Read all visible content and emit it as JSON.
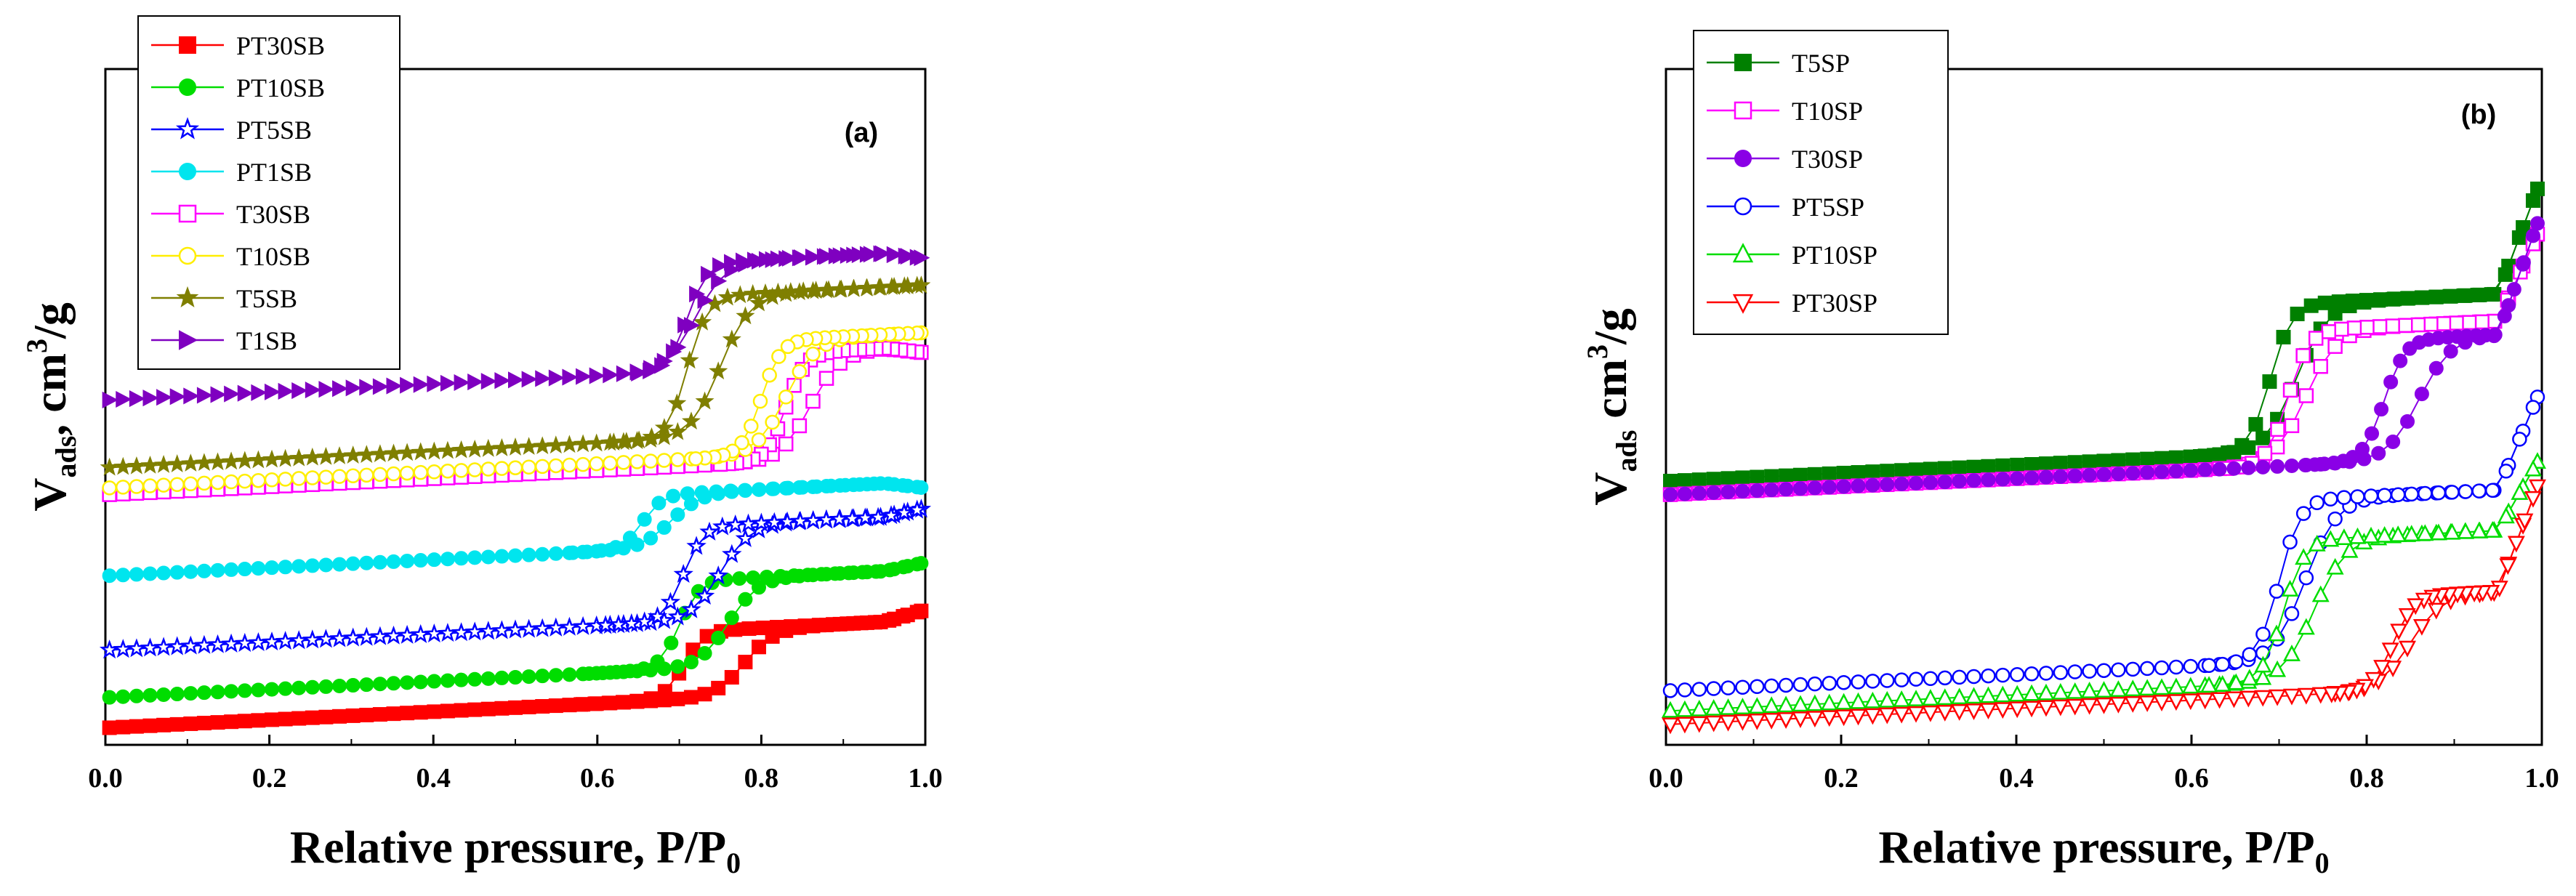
{
  "chart_data": [
    {
      "type": "line",
      "panel_label": "(a)",
      "xlabel": "Relative pressure, P/P",
      "xlabel_sub": "0",
      "ylabel": "V",
      "ylabel_sub": "ads",
      "ylabel_rest": ", cm",
      "ylabel_sup": "3",
      "ylabel_end": "/g",
      "xlim": [
        0,
        1
      ],
      "ylim": [
        0,
        100
      ],
      "xticks": [
        "0.0",
        "0.2",
        "0.4",
        "0.6",
        "0.8",
        "1.0"
      ],
      "yticks_shown": false,
      "legend_position": "top-left",
      "series": [
        {
          "name": "PT30SB",
          "color": "#ff0000",
          "marker": "square-filled",
          "base": 2.5,
          "step": 10,
          "pstep": 0.78,
          "high": 20,
          "hys": 0.15
        },
        {
          "name": "PT10SB",
          "color": "#00dd00",
          "marker": "circle-filled",
          "base": 7,
          "step": 13,
          "pstep": 0.76,
          "high": 27,
          "hys": 0.12
        },
        {
          "name": "PT5SB",
          "color": "#0000ff",
          "marker": "star-open",
          "base": 14,
          "step": 14,
          "pstep": 0.75,
          "high": 35,
          "hys": 0.09
        },
        {
          "name": "PT1SB",
          "color": "#00e5ee",
          "marker": "circle-filled",
          "base": 25,
          "step": 8,
          "pstep": 0.69,
          "high": 38,
          "hys": 0.07
        },
        {
          "name": "T30SB",
          "color": "#ff00ff",
          "marker": "square-open",
          "base": 37,
          "step": 16,
          "pstep": 0.86,
          "high": 58,
          "hys": 0.06
        },
        {
          "name": "T10SB",
          "color": "#ffee00",
          "marker": "circle-open",
          "base": 38,
          "step": 17,
          "pstep": 0.83,
          "high": 61,
          "hys": 0.06
        },
        {
          "name": "T5SB",
          "color": "#7f7f00",
          "marker": "star-filled",
          "base": 41,
          "step": 21,
          "pstep": 0.75,
          "high": 68,
          "hys": 0.08
        },
        {
          "name": "T1SB",
          "color": "#7f00c0",
          "marker": "triangle-right",
          "base": 51,
          "step": 16,
          "pstep": 0.72,
          "high": 72,
          "hys": 0.02
        }
      ]
    },
    {
      "type": "line",
      "panel_label": "(b)",
      "xlabel": "Relative pressure, P/P",
      "xlabel_sub": "0",
      "ylabel": "V",
      "ylabel_sub": "ads",
      "ylabel_rest": "  cm",
      "ylabel_sup": "3",
      "ylabel_end": "/g",
      "xlim": [
        0,
        1
      ],
      "ylim": [
        0,
        100
      ],
      "xticks": [
        "0.0",
        "0.2",
        "0.4",
        "0.6",
        "0.8",
        "1.0"
      ],
      "yticks_shown": false,
      "legend_position": "top-left",
      "series": [
        {
          "name": "T5SP",
          "color": "#008000",
          "marker": "square-filled",
          "base": 39,
          "step": 22,
          "pstep": 0.72,
          "high": 84,
          "hys": 0.06
        },
        {
          "name": "T10SP",
          "color": "#ff00ff",
          "marker": "square-open",
          "base": 37,
          "step": 20,
          "pstep": 0.73,
          "high": 77,
          "hys": 0.04
        },
        {
          "name": "T30SP",
          "color": "#8a00e6",
          "marker": "circle-filled",
          "base": 37,
          "step": 18,
          "pstep": 0.86,
          "high": 79,
          "hys": 0.08
        },
        {
          "name": "PT5SP",
          "color": "#0000ff",
          "marker": "circle-open",
          "base": 8,
          "step": 24,
          "pstep": 0.73,
          "high": 53,
          "hys": 0.06
        },
        {
          "name": "PT10SP",
          "color": "#00dd00",
          "marker": "triangle-open",
          "base": 5,
          "step": 21,
          "pstep": 0.74,
          "high": 43,
          "hys": 0.07
        },
        {
          "name": "PT30SP",
          "color": "#ff0000",
          "marker": "triangle-down-open",
          "base": 3,
          "step": 14,
          "pstep": 0.85,
          "high": 40,
          "hys": 0.04
        }
      ]
    }
  ]
}
